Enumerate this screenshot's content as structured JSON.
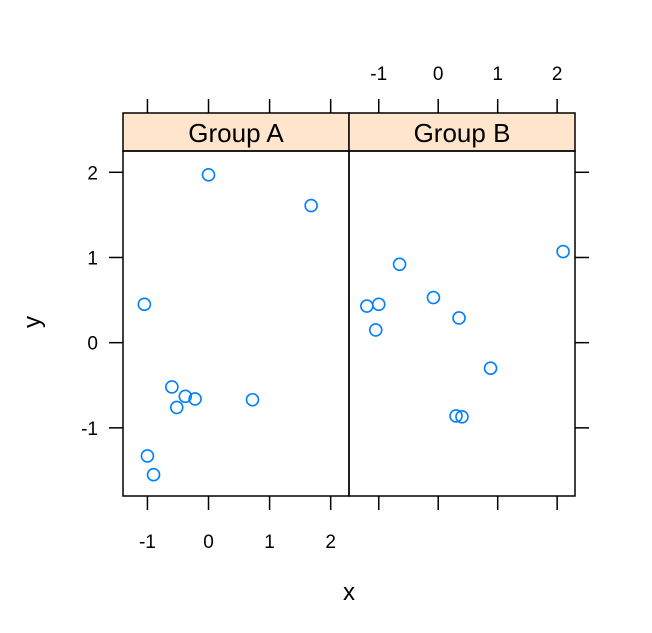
{
  "chart_data": {
    "type": "scatter",
    "layout": "trellis 2 panels side by side, shared y axis",
    "xlabel": "x",
    "ylabel": "y",
    "ylim": [
      -1.8,
      2.25
    ],
    "y_ticks": [
      -1,
      0,
      1,
      2
    ],
    "point_color": "#0080ff",
    "strip_color": "#ffe5cc",
    "grid": false,
    "panels": [
      {
        "name": "Group A",
        "xlim": [
          -1.4,
          2.3
        ],
        "x_ticks": [
          -1,
          0,
          1,
          2
        ],
        "x_tick_labels_position": "bottom",
        "points": [
          {
            "x": 0.0,
            "y": 1.97
          },
          {
            "x": 1.68,
            "y": 1.61
          },
          {
            "x": -1.05,
            "y": 0.45
          },
          {
            "x": -0.6,
            "y": -0.52
          },
          {
            "x": -0.38,
            "y": -0.63
          },
          {
            "x": -0.22,
            "y": -0.66
          },
          {
            "x": -0.52,
            "y": -0.76
          },
          {
            "x": 0.72,
            "y": -0.67
          },
          {
            "x": -1.0,
            "y": -1.33
          },
          {
            "x": -0.9,
            "y": -1.55
          }
        ]
      },
      {
        "name": "Group B",
        "xlim": [
          -1.5,
          2.3
        ],
        "x_ticks": [
          -1,
          0,
          1,
          2
        ],
        "x_tick_labels_position": "top",
        "points": [
          {
            "x": -1.2,
            "y": 0.43
          },
          {
            "x": -1.0,
            "y": 0.45
          },
          {
            "x": -1.05,
            "y": 0.15
          },
          {
            "x": -0.65,
            "y": 0.92
          },
          {
            "x": -0.08,
            "y": 0.53
          },
          {
            "x": 0.35,
            "y": 0.29
          },
          {
            "x": 0.88,
            "y": -0.3
          },
          {
            "x": 0.3,
            "y": -0.86
          },
          {
            "x": 0.4,
            "y": -0.87
          },
          {
            "x": 2.1,
            "y": 1.07
          }
        ]
      }
    ]
  }
}
